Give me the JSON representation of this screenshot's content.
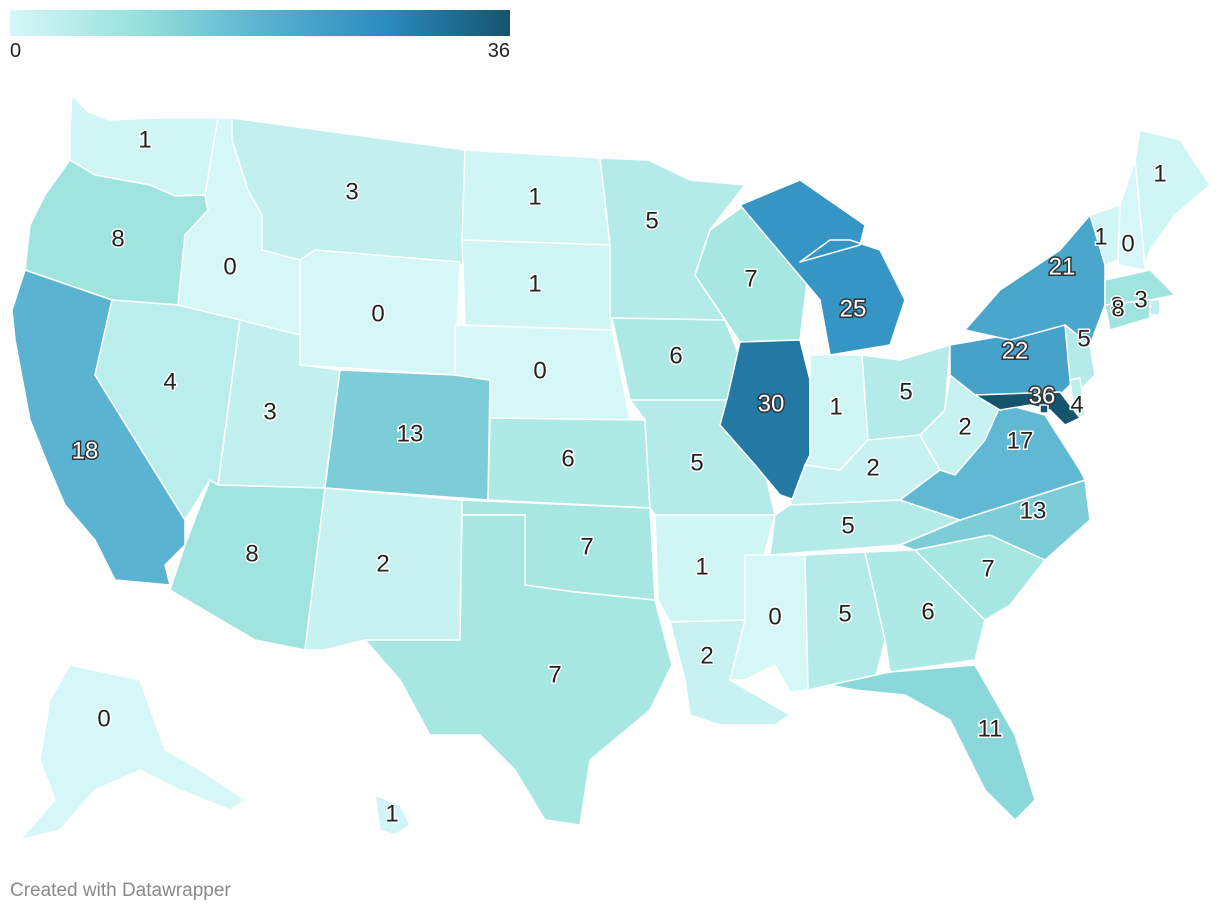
{
  "legend": {
    "min_label": "0",
    "max_label": "36",
    "min": 0,
    "max": 36,
    "colors": [
      "#d6f7f8",
      "#98e2dc",
      "#5ab3d1",
      "#2b8cc0",
      "#16536d"
    ]
  },
  "credit": "Created with Datawrapper",
  "states": [
    {
      "id": "WA",
      "value": 1
    },
    {
      "id": "OR",
      "value": 8
    },
    {
      "id": "CA",
      "value": 18
    },
    {
      "id": "ID",
      "value": 0
    },
    {
      "id": "NV",
      "value": 4
    },
    {
      "id": "MT",
      "value": 3
    },
    {
      "id": "WY",
      "value": 0
    },
    {
      "id": "UT",
      "value": 3
    },
    {
      "id": "AZ",
      "value": 8
    },
    {
      "id": "CO",
      "value": 13
    },
    {
      "id": "NM",
      "value": 2
    },
    {
      "id": "ND",
      "value": 1
    },
    {
      "id": "SD",
      "value": 1
    },
    {
      "id": "NE",
      "value": 0
    },
    {
      "id": "KS",
      "value": 6
    },
    {
      "id": "OK",
      "value": 7
    },
    {
      "id": "TX",
      "value": 7
    },
    {
      "id": "MN",
      "value": 5
    },
    {
      "id": "IA",
      "value": 6
    },
    {
      "id": "MO",
      "value": 5
    },
    {
      "id": "AR",
      "value": 1
    },
    {
      "id": "LA",
      "value": 2
    },
    {
      "id": "WI",
      "value": 7
    },
    {
      "id": "IL",
      "value": 30
    },
    {
      "id": "MI",
      "value": 25
    },
    {
      "id": "IN",
      "value": 1
    },
    {
      "id": "OH",
      "value": 5
    },
    {
      "id": "KY",
      "value": 2
    },
    {
      "id": "TN",
      "value": 5
    },
    {
      "id": "MS",
      "value": 0
    },
    {
      "id": "AL",
      "value": 5
    },
    {
      "id": "GA",
      "value": 6
    },
    {
      "id": "FL",
      "value": 11
    },
    {
      "id": "SC",
      "value": 7
    },
    {
      "id": "NC",
      "value": 13
    },
    {
      "id": "VA",
      "value": 17
    },
    {
      "id": "WV",
      "value": 2
    },
    {
      "id": "PA",
      "value": 22
    },
    {
      "id": "NY",
      "value": 21
    },
    {
      "id": "VT",
      "value": 1
    },
    {
      "id": "NH",
      "value": 0
    },
    {
      "id": "ME",
      "value": 1
    },
    {
      "id": "MA",
      "value": 8
    },
    {
      "id": "RI",
      "value": 3
    },
    {
      "id": "CT",
      "value": 8
    },
    {
      "id": "NJ",
      "value": 5
    },
    {
      "id": "DE",
      "value": 4
    },
    {
      "id": "MD",
      "value": 36
    },
    {
      "id": "DC",
      "value": 36
    },
    {
      "id": "AK",
      "value": 0
    },
    {
      "id": "HI",
      "value": 1
    }
  ]
}
